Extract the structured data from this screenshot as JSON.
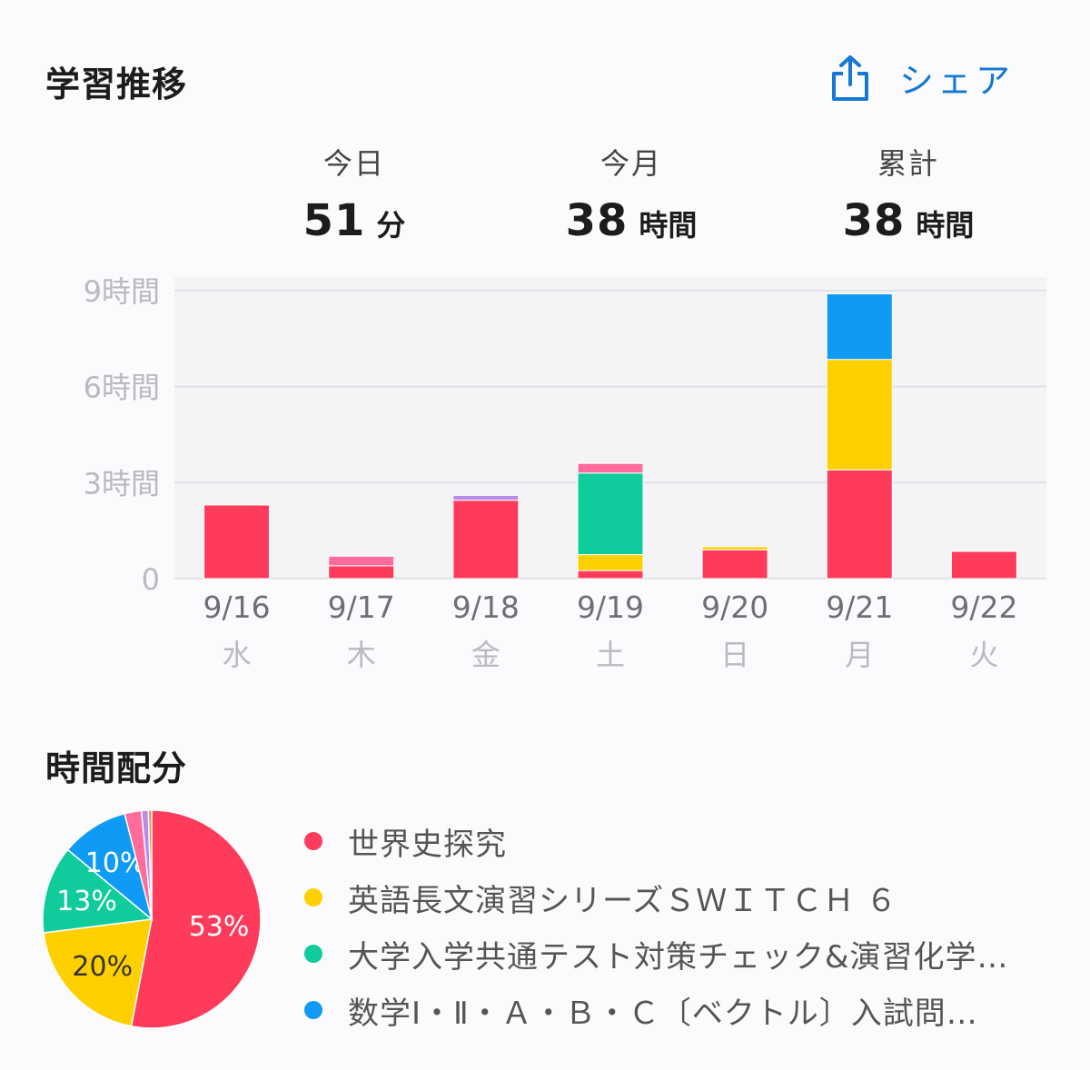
{
  "header": {
    "title": "学習推移",
    "share_label": "シェア"
  },
  "stats": [
    {
      "label": "今日",
      "value": "51",
      "unit": "分"
    },
    {
      "label": "今月",
      "value": "38",
      "unit": "時間"
    },
    {
      "label": "累計",
      "value": "38",
      "unit": "時間"
    }
  ],
  "chart_data": {
    "type": "bar",
    "stacked": true,
    "categories": [
      "9/16",
      "9/17",
      "9/18",
      "9/19",
      "9/20",
      "9/21",
      "9/22"
    ],
    "weekdays": [
      "水",
      "木",
      "金",
      "土",
      "日",
      "月",
      "火"
    ],
    "ylim": [
      0,
      9
    ],
    "yticks": [
      0,
      3,
      6,
      9
    ],
    "ytick_labels": [
      "0",
      "3時間",
      "6時間",
      "9時間"
    ],
    "grid": true,
    "series": [
      {
        "name": "世界史探究",
        "color": "#ff3b5c",
        "values": [
          2.3,
          0.4,
          2.45,
          0.25,
          0.9,
          3.4,
          0.85
        ]
      },
      {
        "name": "英語長文演習シリーズＳＷＩＴＣＨ ６",
        "color": "#ffd000",
        "values": [
          0,
          0,
          0,
          0.5,
          0.1,
          3.45,
          0
        ]
      },
      {
        "name": "大学入学共通テスト対策チェック&演習化学…",
        "color": "#10cc9c",
        "values": [
          0,
          0,
          0,
          2.55,
          0,
          0,
          0
        ]
      },
      {
        "name": "数学Ⅰ・Ⅱ・Ａ・Ｂ・Ｃ〔ベクトル〕入試問…",
        "color": "#0f9af5",
        "values": [
          0,
          0,
          0,
          0,
          0,
          2.05,
          0
        ]
      },
      {
        "color": "#ff6b9a",
        "values": [
          0,
          0.3,
          0,
          0.3,
          0,
          0,
          0
        ]
      },
      {
        "color": "#b98be8",
        "values": [
          0,
          0,
          0.15,
          0,
          0,
          0,
          0
        ]
      }
    ]
  },
  "allocation": {
    "title": "時間配分",
    "pie": {
      "type": "pie",
      "slices": [
        {
          "value": 53,
          "label": "53%",
          "color": "#ff3b5c"
        },
        {
          "value": 20,
          "label": "20%",
          "color": "#ffd000"
        },
        {
          "value": 13,
          "label": "13%",
          "color": "#10cc9c"
        },
        {
          "value": 10,
          "label": "10%",
          "color": "#0f9af5"
        },
        {
          "value": 2.5,
          "label": "",
          "color": "#ff6b9a"
        },
        {
          "value": 1,
          "label": "",
          "color": "#b98be8"
        },
        {
          "value": 0.5,
          "label": "",
          "color": "#ff8a3d"
        }
      ]
    },
    "legend": [
      {
        "label": "世界史探究",
        "color": "#ff3b5c"
      },
      {
        "label": "英語長文演習シリーズＳＷＩＴＣＨ ６",
        "color": "#ffd000"
      },
      {
        "label": "大学入学共通テスト対策チェック&演習化学…",
        "color": "#10cc9c"
      },
      {
        "label": "数学Ⅰ・Ⅱ・Ａ・Ｂ・Ｃ〔ベクトル〕入試問…",
        "color": "#0f9af5"
      }
    ]
  }
}
